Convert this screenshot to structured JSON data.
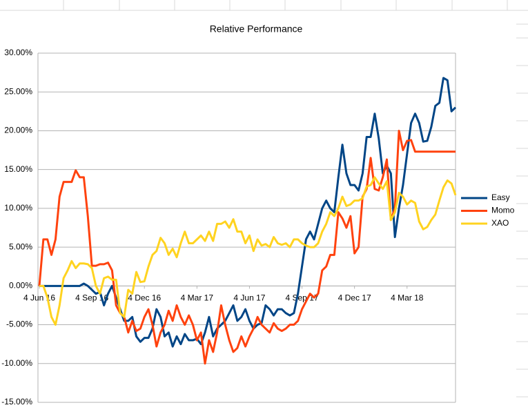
{
  "chart_data": {
    "type": "line",
    "title": "Relative Performance",
    "categories": [
      "4 Jun 16",
      null,
      null,
      null,
      null,
      null,
      null,
      null,
      null,
      null,
      null,
      null,
      null,
      "4 Sep 16",
      null,
      null,
      null,
      null,
      null,
      null,
      null,
      null,
      null,
      null,
      null,
      null,
      "4 Dec 16",
      null,
      null,
      null,
      null,
      null,
      null,
      null,
      null,
      null,
      null,
      null,
      null,
      "4 Mar 17",
      null,
      null,
      null,
      null,
      null,
      null,
      null,
      null,
      null,
      null,
      null,
      null,
      "4 Jun 17",
      null,
      null,
      null,
      null,
      null,
      null,
      null,
      null,
      null,
      null,
      null,
      null,
      "4 Sep 17",
      null,
      null,
      null,
      null,
      null,
      null,
      null,
      null,
      null,
      null,
      null,
      null,
      "4 Dec 17",
      null,
      null,
      null,
      null,
      null,
      null,
      null,
      null,
      null,
      null,
      null,
      null,
      "4 Mar 18",
      null,
      null,
      null,
      null,
      null,
      null,
      null,
      null,
      null,
      null,
      null,
      null
    ],
    "series": [
      {
        "name": "Easy",
        "color": "#004586",
        "values": [
          0,
          0,
          0,
          0,
          0,
          0,
          0,
          0,
          0,
          0,
          0,
          0.3,
          0,
          -0.5,
          -1,
          -0.8,
          -2.5,
          -1,
          0,
          -1.5,
          -3,
          -4.5,
          -4.5,
          -4,
          -6.5,
          -7.2,
          -6.7,
          -6.7,
          -5.5,
          -3,
          -4,
          -6.5,
          -6,
          -7.8,
          -6.5,
          -7.5,
          -6.2,
          -7,
          -7,
          -6.8,
          -7.5,
          -6,
          -4,
          -6.5,
          -5.5,
          -5,
          -4.5,
          -3.5,
          -2.5,
          -4.5,
          -4,
          -3,
          -4.5,
          -5.5,
          -5,
          -4.8,
          -2.5,
          -3,
          -3.8,
          -3,
          -3,
          -3.5,
          -3.8,
          -3.5,
          -1,
          2.5,
          6,
          7,
          6,
          8,
          10,
          11,
          10,
          9.5,
          14,
          18.2,
          14.5,
          13,
          13,
          12.3,
          14.5,
          19.2,
          19.2,
          22.2,
          19,
          14.5,
          15.5,
          14.5,
          6.3,
          10,
          13,
          17,
          21,
          22.2,
          21,
          18.6,
          18.7,
          20.5,
          23.2,
          23.6,
          26.8,
          26.5,
          22.5,
          23
        ]
      },
      {
        "name": "Momo",
        "color": "#ff420e",
        "values": [
          0,
          6,
          6,
          4,
          6,
          11.5,
          13.4,
          13.4,
          13.4,
          14.9,
          14,
          14,
          9,
          2.6,
          2.6,
          2.8,
          2.8,
          3,
          2,
          -2.5,
          -3.5,
          -4,
          -6,
          -4.5,
          -5.8,
          -5.5,
          -4,
          -3,
          -5,
          -7.8,
          -6,
          -5,
          -3.2,
          -4.5,
          -2.5,
          -4,
          -5,
          -3.8,
          -5,
          -7,
          -6,
          -10,
          -7,
          -8.5,
          -6,
          -2.5,
          -5,
          -7,
          -8.5,
          -8,
          -6.5,
          -7.8,
          -6.5,
          -5.5,
          -4,
          -5,
          -5.5,
          -6,
          -4.8,
          -5.5,
          -5.8,
          -5.5,
          -5,
          -5,
          -4.5,
          -3,
          -2,
          -1,
          -1.5,
          -1,
          2,
          2.5,
          4,
          4,
          9.5,
          8.7,
          7.5,
          9,
          4.2,
          5,
          11.5,
          12.5,
          16.5,
          12.5,
          12.3,
          14,
          16.3,
          8.5,
          10,
          20,
          17.5,
          18.7,
          18.8,
          17.3,
          17.3,
          17.3,
          17.3,
          17.3,
          17.3,
          17.3,
          17.3,
          17.3,
          17.3,
          17.3
        ]
      },
      {
        "name": "XAO",
        "color": "#ffd320",
        "values": [
          0,
          0,
          -1.5,
          -4,
          -5,
          -2.5,
          1,
          2,
          3.2,
          2.3,
          2.9,
          2.9,
          2.8,
          2.3,
          0,
          -1,
          1,
          1.2,
          0.8,
          0.8,
          -3.5,
          -4,
          -0.5,
          -1,
          1.8,
          0.5,
          0.6,
          2.5,
          4,
          4.5,
          6.2,
          5.5,
          4,
          4.8,
          3.7,
          5.5,
          7,
          5.5,
          5.5,
          6,
          6.5,
          5.8,
          7,
          5.8,
          8,
          8,
          8.3,
          7.5,
          8.6,
          7,
          7,
          5.5,
          6.5,
          4.5,
          6,
          5.2,
          5.4,
          5,
          6.3,
          5.5,
          5.3,
          5.5,
          5,
          6,
          6,
          5.5,
          5.2,
          5,
          5,
          5.5,
          7,
          8,
          9.5,
          9,
          10,
          11.5,
          10.3,
          10.5,
          11,
          11,
          11.3,
          12.8,
          13,
          14,
          13.2,
          12.5,
          13.5,
          8.5,
          9.5,
          12,
          11.5,
          10.5,
          11,
          10.7,
          8.3,
          7.3,
          7.6,
          8.5,
          9.2,
          11,
          12.7,
          13.6,
          13.2,
          11.7
        ]
      }
    ],
    "ylim": [
      -15,
      30
    ],
    "yticks": [
      {
        "value": -15,
        "label": "-15.00%"
      },
      {
        "value": -10,
        "label": "-10.00%"
      },
      {
        "value": -5,
        "label": "-5.00%"
      },
      {
        "value": 0,
        "label": "0.00%"
      },
      {
        "value": 5,
        "label": "5.00%"
      },
      {
        "value": 10,
        "label": "10.00%"
      },
      {
        "value": 15,
        "label": "15.00%"
      },
      {
        "value": 20,
        "label": "20.00%"
      },
      {
        "value": 25,
        "label": "25.00%"
      },
      {
        "value": 30,
        "label": "30.00%"
      }
    ],
    "grid": true,
    "legend": "right"
  }
}
